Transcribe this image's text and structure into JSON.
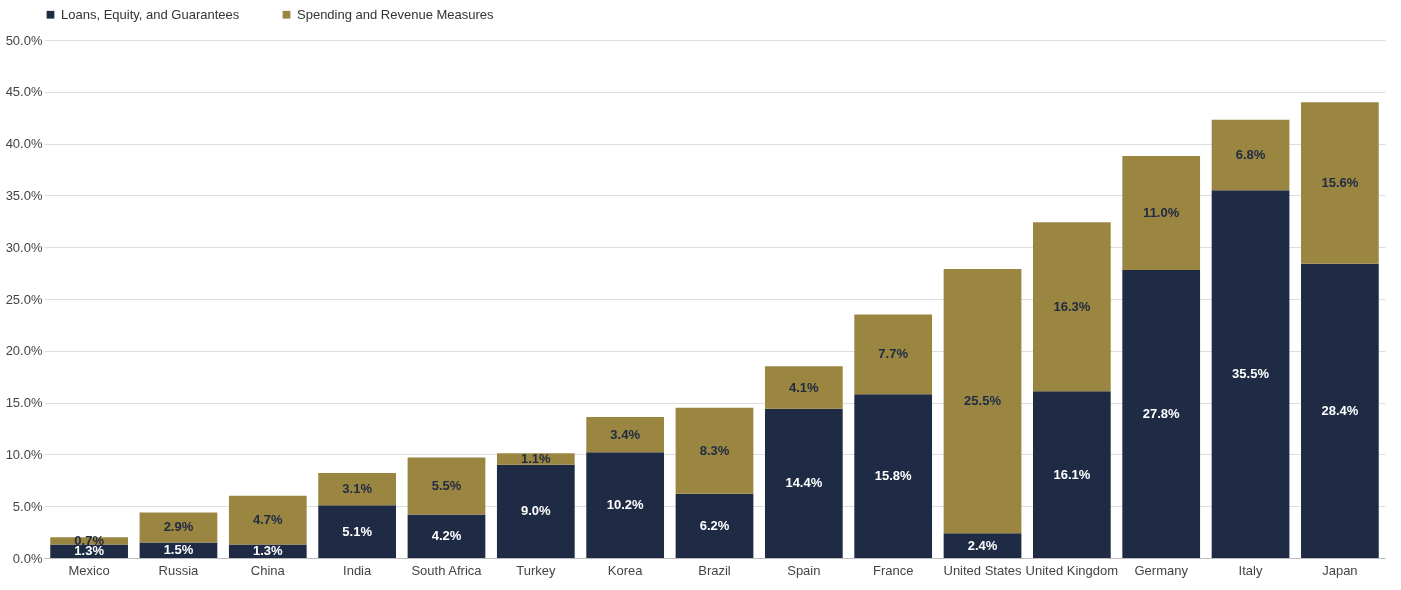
{
  "chart_data": {
    "type": "bar",
    "stacked": true,
    "legend": "top",
    "grid": "y",
    "data_labels": true,
    "categories": [
      "Mexico",
      "Russia",
      "China",
      "India",
      "South Africa",
      "Turkey",
      "Korea",
      "Brazil",
      "Spain",
      "France",
      "United States",
      "United Kingdom",
      "Germany",
      "Italy",
      "Japan"
    ],
    "series": [
      {
        "name": "Loans, Equity, and Guarantees",
        "color": "#1f2a44",
        "values": [
          1.3,
          1.5,
          1.3,
          5.1,
          4.2,
          9.0,
          10.2,
          6.2,
          14.4,
          15.8,
          2.4,
          16.1,
          27.8,
          35.5,
          28.4
        ],
        "value_labels": [
          "1.3%",
          "1.5%",
          "1.3%",
          "5.1%",
          "4.2%",
          "9.0%",
          "10.2%",
          "6.2%",
          "14.4%",
          "15.8%",
          "2.4%",
          "16.1%",
          "27.8%",
          "35.5%",
          "28.4%"
        ]
      },
      {
        "name": "Spending and Revenue Measures",
        "color": "#9a8640",
        "values": [
          0.7,
          2.9,
          4.7,
          3.1,
          5.5,
          1.1,
          3.4,
          8.3,
          4.1,
          7.7,
          25.5,
          16.3,
          11.0,
          6.8,
          15.6
        ],
        "value_labels": [
          "0.7%",
          "2.9%",
          "4.7%",
          "3.1%",
          "5.5%",
          "1.1%",
          "3.4%",
          "8.3%",
          "4.1%",
          "7.7%",
          "25.5%",
          "16.3%",
          "11.0%",
          "6.8%",
          "15.6%"
        ]
      }
    ],
    "ylim": [
      0,
      50
    ],
    "yticks": [
      {
        "value": 0,
        "label": "0.0%"
      },
      {
        "value": 5,
        "label": "5.0%"
      },
      {
        "value": 10,
        "label": "10.0%"
      },
      {
        "value": 15,
        "label": "15.0%"
      },
      {
        "value": 20,
        "label": "20.0%"
      },
      {
        "value": 25,
        "label": "25.0%"
      },
      {
        "value": 30,
        "label": "30.0%"
      },
      {
        "value": 35,
        "label": "35.0%"
      },
      {
        "value": 40,
        "label": "40.0%"
      },
      {
        "value": 45,
        "label": "45.0%"
      },
      {
        "value": 50,
        "label": "50.0%"
      }
    ]
  }
}
